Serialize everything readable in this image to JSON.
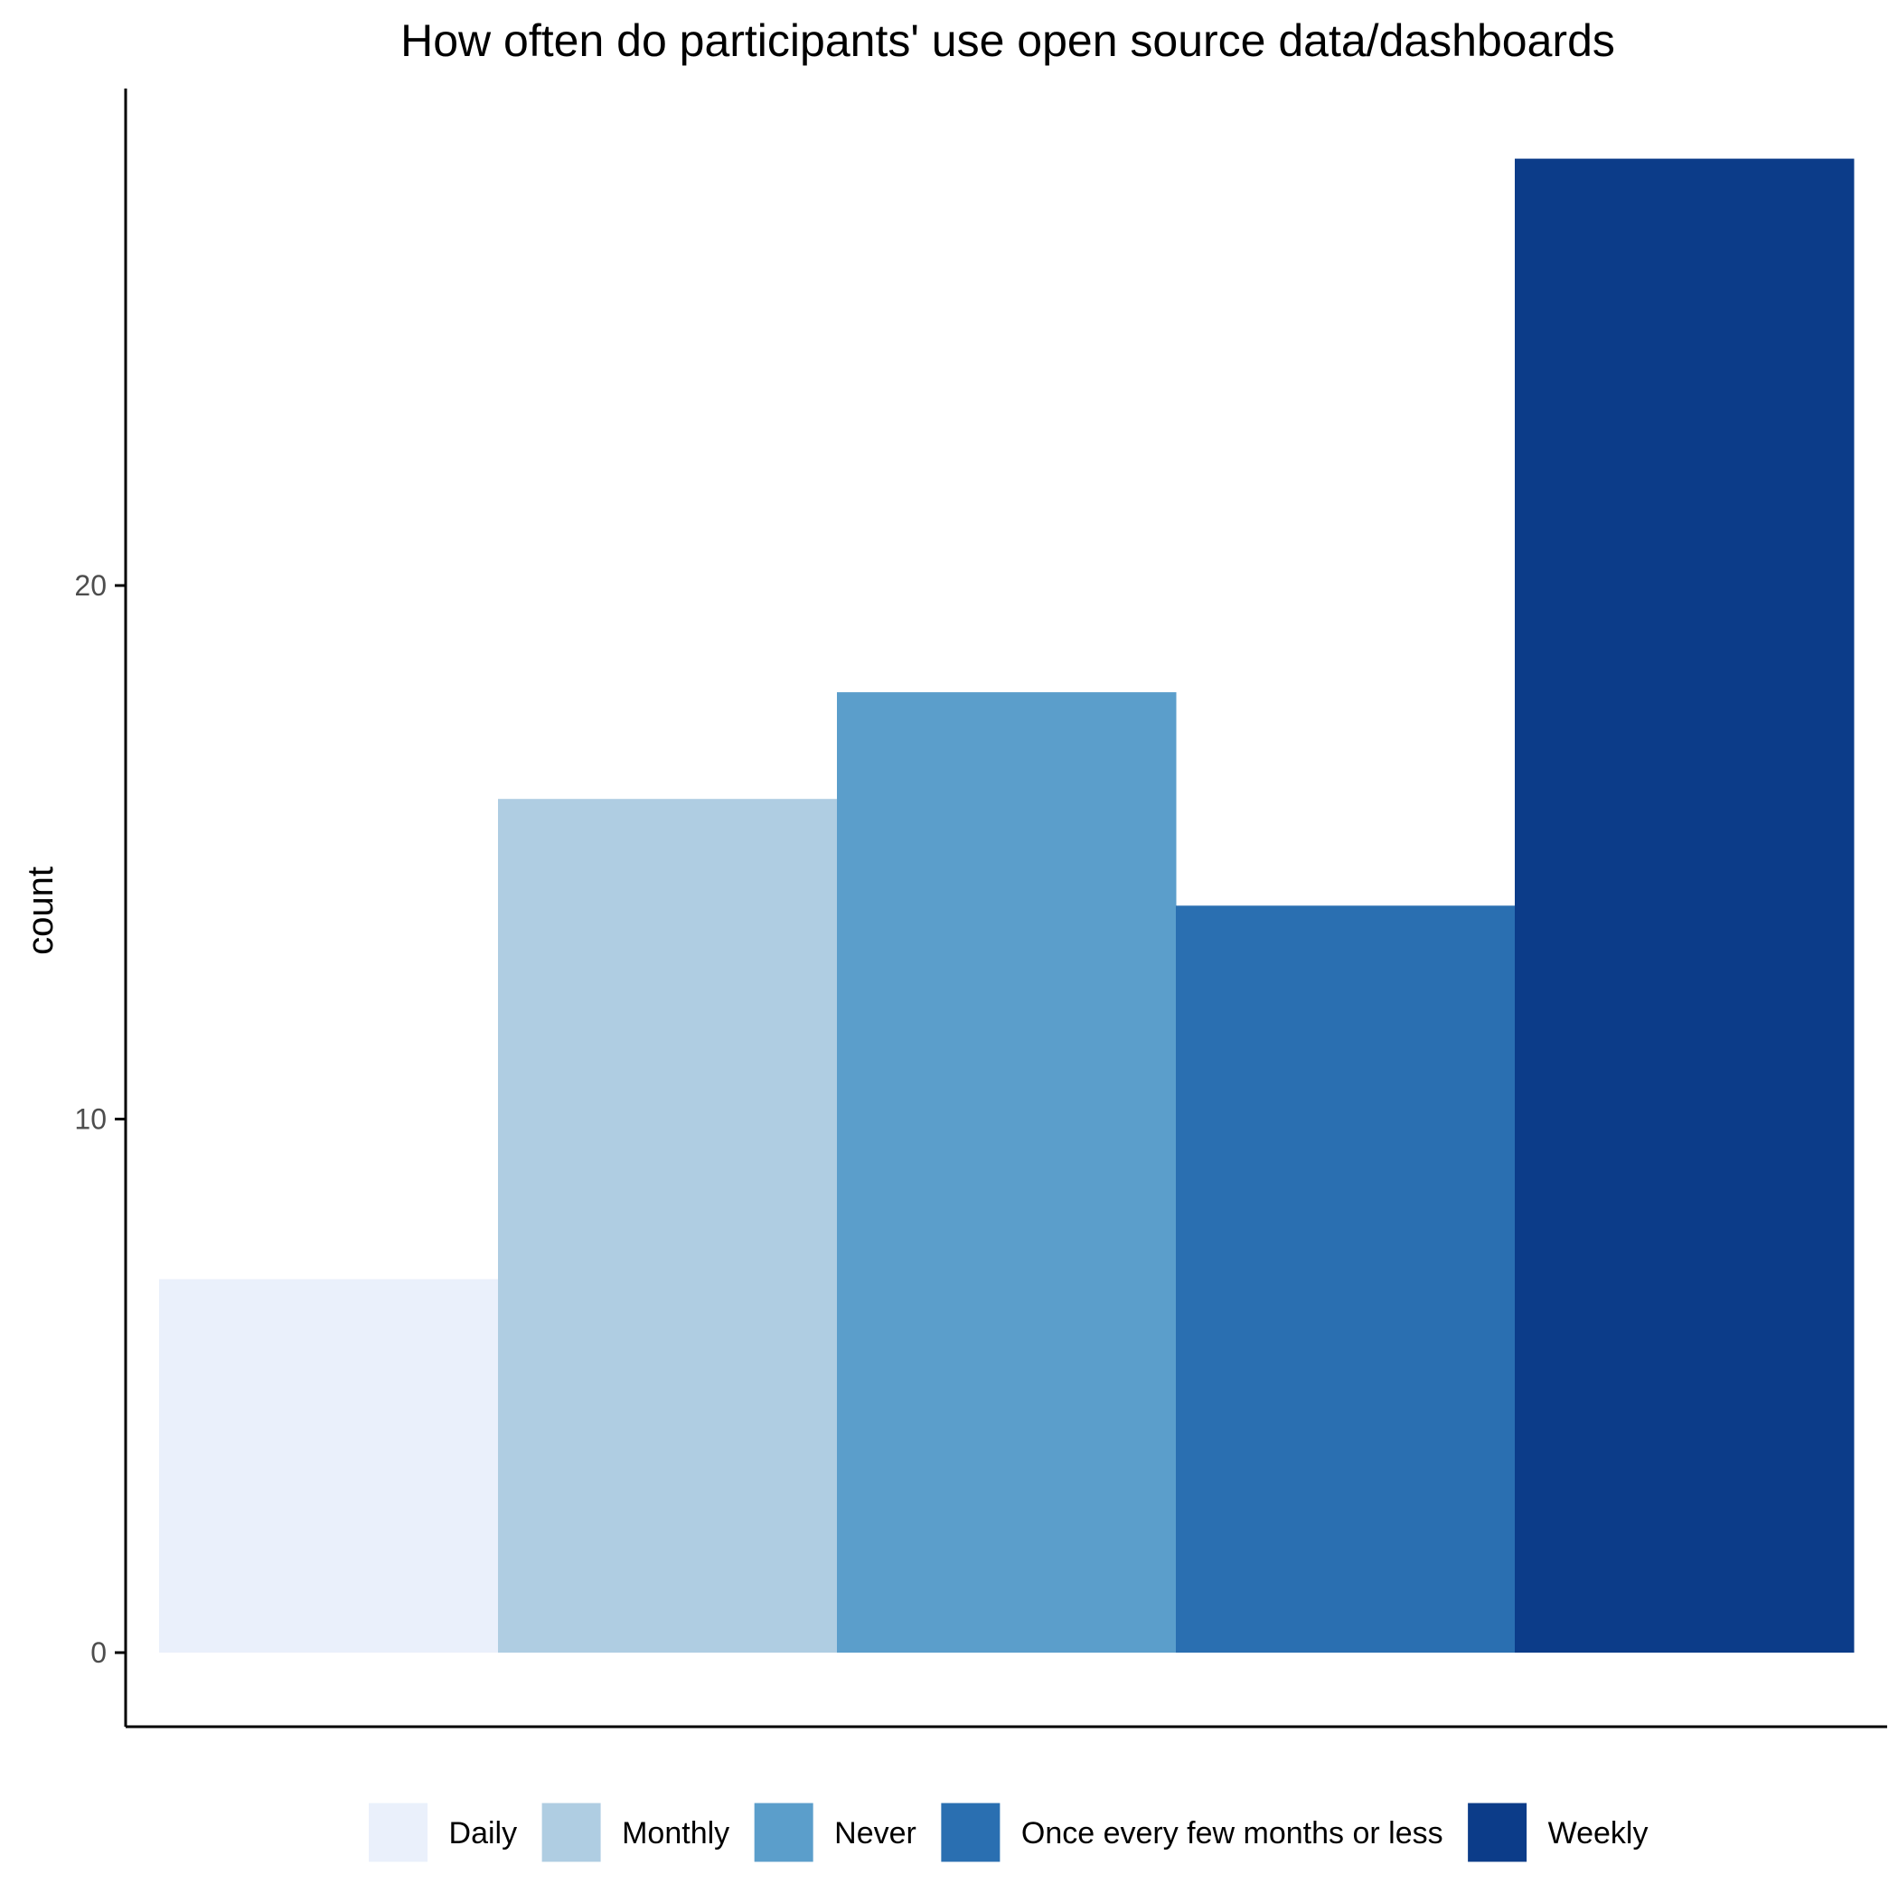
{
  "chart_data": {
    "type": "bar",
    "title": "How often do participants' use open source data/dashboards",
    "xlabel": "",
    "ylabel": "count",
    "categories": [
      "Daily",
      "Monthly",
      "Never",
      "Once every few months or less",
      "Weekly"
    ],
    "values": [
      7,
      16,
      18,
      14,
      28
    ],
    "colors": [
      "#EAF0FB",
      "#AFCDE2",
      "#5B9ECB",
      "#2A6FB1",
      "#0C3C89"
    ],
    "ylim": [
      0,
      28
    ],
    "yticks": [
      "0",
      "10",
      "20"
    ],
    "ytick_values": [
      0,
      10,
      20
    ],
    "grid": false,
    "legend_position": "bottom",
    "legend": [
      "Daily",
      "Monthly",
      "Never",
      "Once every few months or less",
      "Weekly"
    ]
  }
}
